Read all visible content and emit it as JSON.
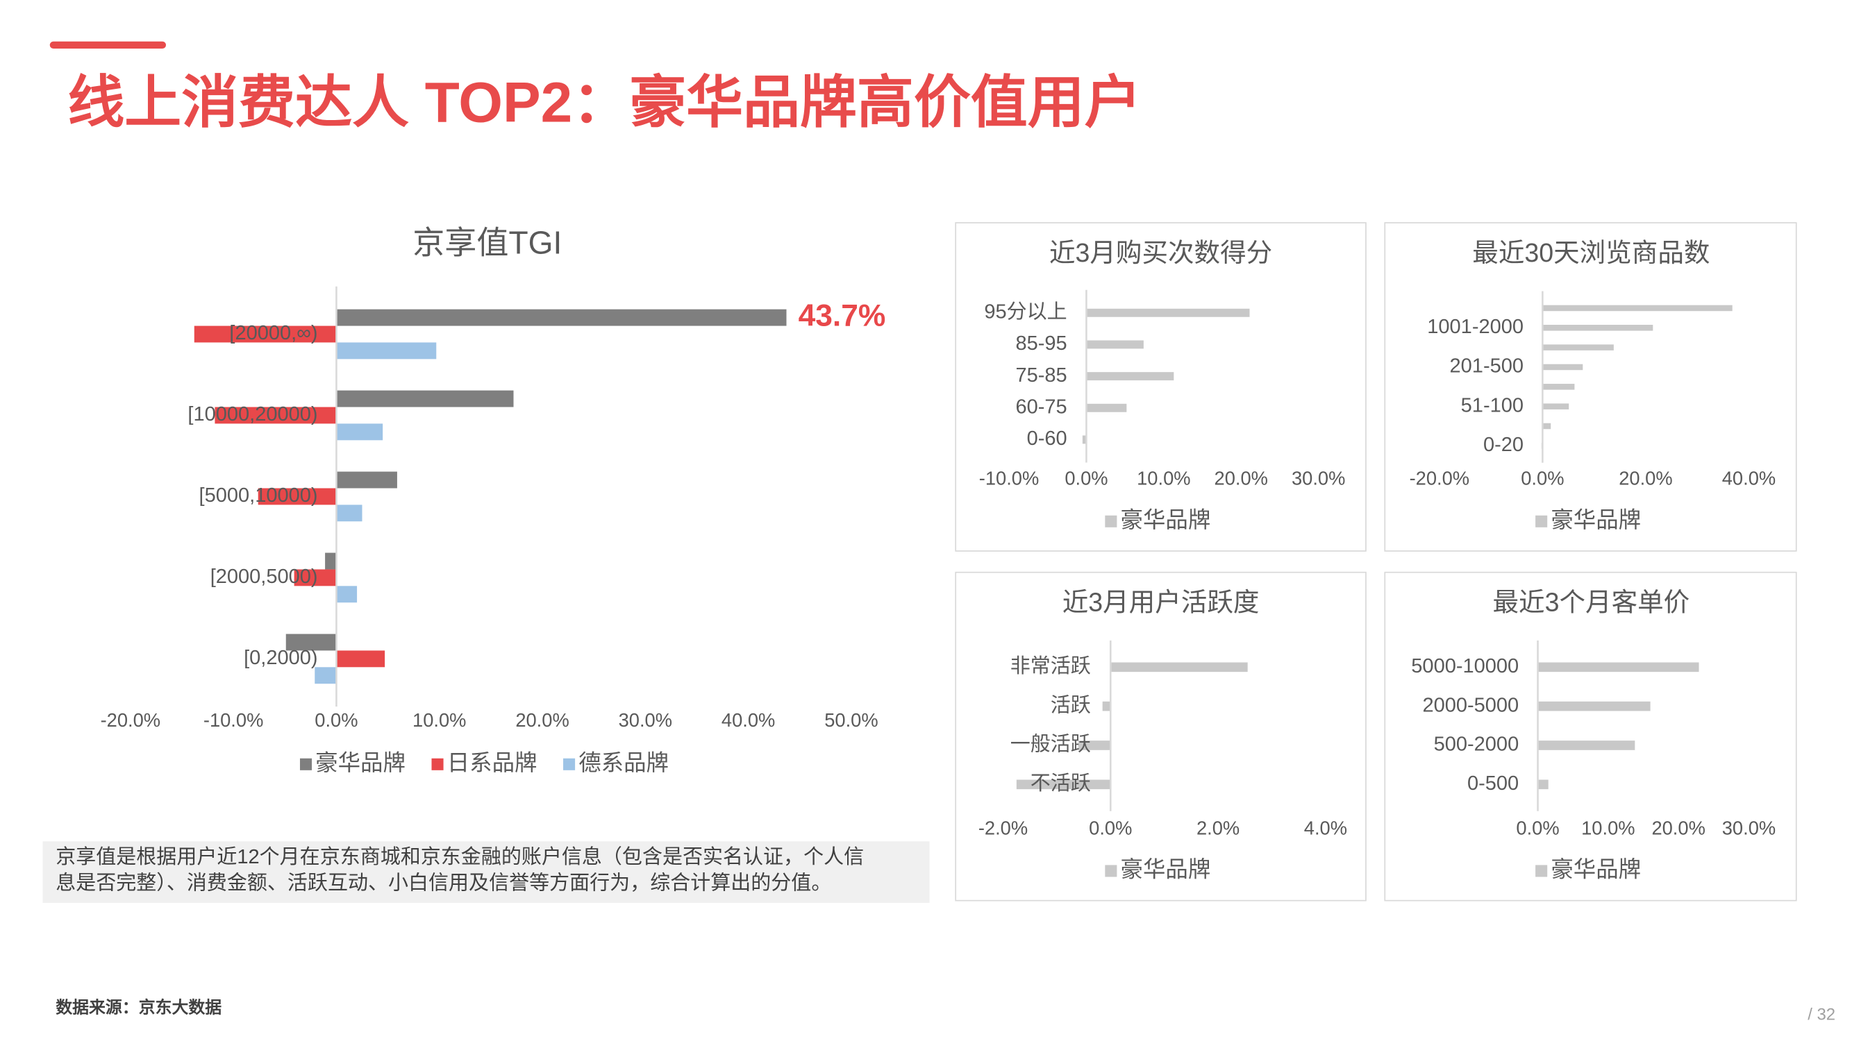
{
  "header": {
    "title": "线上消费达人 TOP2：豪华品牌高价值用户"
  },
  "note": {
    "lines": [
      "京享值是根据用户近12个月在京东商城和京东金融的账户信息（包含是否实名认证，个人信",
      "息是否完整）、消费金额、活跃互动、小白信用及信誉等方面行为，综合计算出的分值。"
    ]
  },
  "footer": {
    "source": "数据来源：京东大数据",
    "page": "/ 32"
  },
  "chart_data": [
    {
      "type": "bar",
      "orientation": "horizontal",
      "title": "京享值TGI",
      "categories": [
        "[20000,∞)",
        "[10000,20000)",
        "[5000,10000)",
        "[2000,5000)",
        "[0,2000)"
      ],
      "series": [
        {
          "name": "豪华品牌",
          "color": "#7f7f7f",
          "values": [
            43.7,
            17.2,
            5.9,
            -1.1,
            -4.9
          ],
          "value_labels": [
            "43.7%",
            null,
            null,
            null,
            null
          ]
        },
        {
          "name": "日系品牌",
          "color": "#e8484a",
          "values": [
            -13.8,
            -11.8,
            -7.6,
            -4.1,
            4.7
          ]
        },
        {
          "name": "德系品牌",
          "color": "#9dc3e6",
          "values": [
            9.7,
            4.5,
            2.5,
            2.0,
            -2.1
          ]
        }
      ],
      "xlim": [
        -20,
        50
      ],
      "xticks": [
        {
          "value": -20,
          "label": "-20.0%"
        },
        {
          "value": -10,
          "label": "-10.0%"
        },
        {
          "value": 0,
          "label": "0.0%"
        },
        {
          "value": 10,
          "label": "10.0%"
        },
        {
          "value": 20,
          "label": "20.0%"
        },
        {
          "value": 30,
          "label": "30.0%"
        },
        {
          "value": 40,
          "label": "40.0%"
        },
        {
          "value": 50,
          "label": "50.0%"
        }
      ],
      "legend": "bottom"
    },
    {
      "type": "bar",
      "orientation": "horizontal",
      "title": "近3月购买次数得分",
      "categories": [
        "95分以上",
        "85-95",
        "75-85",
        "60-75",
        "0-60"
      ],
      "series": [
        {
          "name": "豪华品牌",
          "color": "#c8c8c8",
          "values": [
            21.1,
            7.4,
            11.3,
            5.2,
            -0.5
          ]
        }
      ],
      "xlim": [
        -10,
        30
      ],
      "xticks": [
        {
          "value": -10,
          "label": "-10.0%"
        },
        {
          "value": 0,
          "label": "0.0%"
        },
        {
          "value": 10,
          "label": "10.0%"
        },
        {
          "value": 20,
          "label": "20.0%"
        },
        {
          "value": 30,
          "label": "30.0%"
        }
      ],
      "legend": "bottom"
    },
    {
      "type": "bar",
      "orientation": "horizontal",
      "title": "最近30天浏览商品数",
      "categories": [
        null,
        "1001-2000",
        null,
        "201-500",
        null,
        "51-100",
        null,
        "0-20"
      ],
      "series": [
        {
          "name": "豪华品牌",
          "color": "#c8c8c8",
          "values": [
            36.8,
            21.4,
            13.8,
            7.8,
            6.2,
            5.1,
            1.6,
            -0.2
          ]
        }
      ],
      "xlim": [
        -20,
        40
      ],
      "xticks": [
        {
          "value": -20,
          "label": "-20.0%"
        },
        {
          "value": 0,
          "label": "0.0%"
        },
        {
          "value": 20,
          "label": "20.0%"
        },
        {
          "value": 40,
          "label": "40.0%"
        }
      ],
      "legend": "bottom"
    },
    {
      "type": "bar",
      "orientation": "horizontal",
      "title": "近3月用户活跃度",
      "categories": [
        "非常活跃",
        "活跃",
        "一般活跃",
        "不活跃"
      ],
      "series": [
        {
          "name": "豪华品牌",
          "color": "#c8c8c8",
          "values": [
            2.55,
            -0.15,
            -0.6,
            -1.75
          ]
        }
      ],
      "xlim": [
        -2,
        4
      ],
      "xticks": [
        {
          "value": -2,
          "label": "-2.0%"
        },
        {
          "value": 0,
          "label": "0.0%"
        },
        {
          "value": 2,
          "label": "2.0%"
        },
        {
          "value": 4,
          "label": "4.0%"
        }
      ],
      "legend": "bottom"
    },
    {
      "type": "bar",
      "orientation": "horizontal",
      "title": "最近3个月客单价",
      "categories": [
        "5000-10000",
        "2000-5000",
        "500-2000",
        "0-500"
      ],
      "series": [
        {
          "name": "豪华品牌",
          "color": "#c8c8c8",
          "values": [
            22.9,
            16.0,
            13.8,
            1.5
          ]
        }
      ],
      "xlim": [
        0,
        30
      ],
      "xticks": [
        {
          "value": 0,
          "label": "0.0%"
        },
        {
          "value": 10,
          "label": "10.0%"
        },
        {
          "value": 20,
          "label": "20.0%"
        },
        {
          "value": 30,
          "label": "30.0%"
        }
      ],
      "legend": "bottom"
    }
  ]
}
